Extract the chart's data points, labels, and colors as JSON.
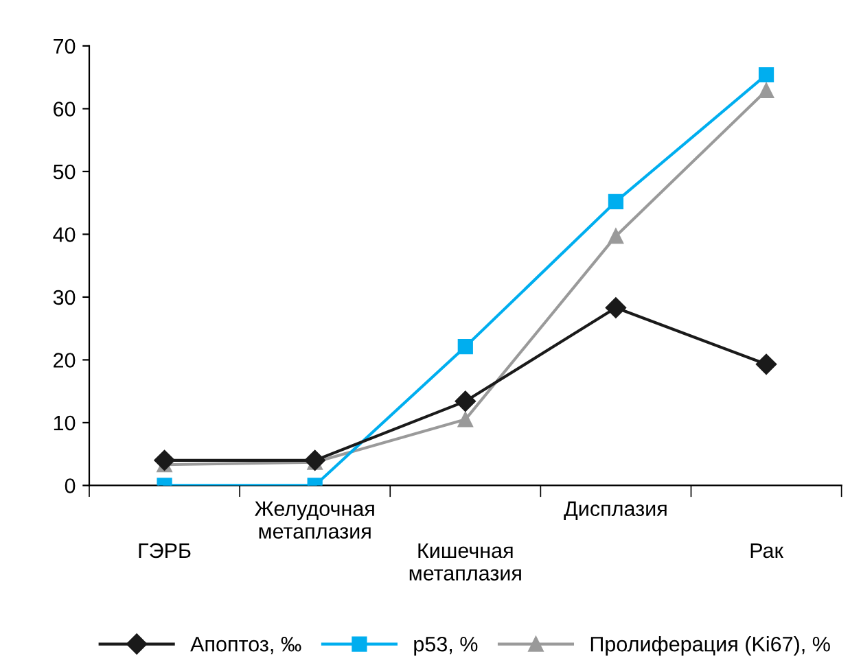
{
  "chart_data": {
    "type": "line",
    "categories": [
      "ГЭРБ",
      "Желудочная\nметаплазия",
      "Кишечная\nметаплазия",
      "Дисплазия",
      "Рак"
    ],
    "series": [
      {
        "name": "Апоптоз, ‰",
        "color": "#1a1a1a",
        "marker": "diamond",
        "values": [
          4,
          4,
          13.4,
          28.3,
          19.3
        ]
      },
      {
        "name": "p53, %",
        "color": "#00aeef",
        "marker": "square",
        "values": [
          0,
          0,
          22.1,
          45.2,
          65.4
        ]
      },
      {
        "name": "Пролиферация (Ki67), %",
        "color": "#9a9a9a",
        "marker": "triangle",
        "values": [
          3.3,
          3.7,
          10.5,
          39.7,
          62.9
        ]
      }
    ],
    "ylim": [
      0,
      70
    ],
    "yticks": [
      0,
      10,
      20,
      30,
      40,
      50,
      60,
      70
    ],
    "grid": false,
    "legend": "bottom",
    "line_style": "solid"
  }
}
